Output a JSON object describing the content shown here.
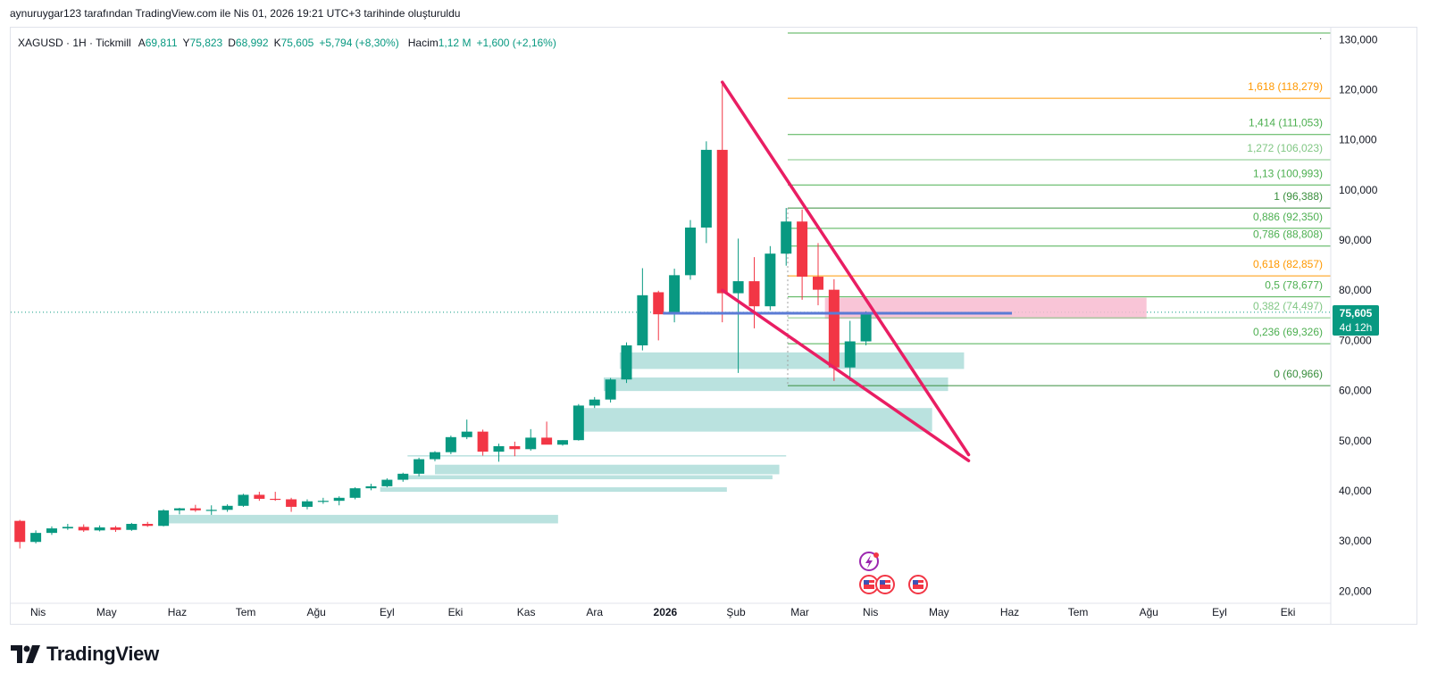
{
  "header": {
    "attribution": "aynuruygar123 tarafından TradingView.com ile Nis 01, 2026 19:21 UTC+3 tarihinde oluşturuldu"
  },
  "legend": {
    "symbol": "XAGUSD · 1H · Tickmill",
    "open_label": "A",
    "open": "69,811",
    "high_label": "Y",
    "high": "75,823",
    "low_label": "D",
    "low": "68,992",
    "close_label": "K",
    "close": "75,605",
    "change": "+5,794 (+8,30%)",
    "volume_label": "Hacim",
    "volume": "1,12 M",
    "volume_change": "+1,600 (+2,16%)"
  },
  "price_tag": {
    "price": "75,605",
    "countdown": "4d 12h"
  },
  "brand": {
    "name": "TradingView"
  },
  "colors": {
    "up": "#089981",
    "down": "#f23645",
    "wedge": "#e91e63",
    "fib_green": "#4caf50",
    "fib_orange": "#ff9800",
    "zone": "#b2dfdb",
    "resistance_zone": "#f8bbd0",
    "level_line": "#5b7bd5"
  },
  "chart_data": {
    "type": "candlestick",
    "symbol": "XAGUSD",
    "ylim": [
      18000,
      132000
    ],
    "y_ticks": [
      "130,000",
      "120,000",
      "110,000",
      "100,000",
      "90,000",
      "80,000",
      "70,000",
      "60,000",
      "50,000",
      "40,000",
      "30,000",
      "20,000"
    ],
    "y_tick_values": [
      130000,
      120000,
      110000,
      100000,
      90000,
      80000,
      70000,
      60000,
      50000,
      40000,
      30000,
      20000
    ],
    "x_ticks": [
      "Nis",
      "May",
      "Haz",
      "Tem",
      "Ağu",
      "Eyl",
      "Eki",
      "Kas",
      "Ara",
      "2026",
      "Şub",
      "Mar",
      "Nis",
      "May",
      "Haz",
      "Tem",
      "Ağu",
      "Eyl",
      "Eki"
    ],
    "x_tick_dates": [
      "2025-04-01",
      "2025-05-01",
      "2025-06-01",
      "2025-07-01",
      "2025-08-01",
      "2025-09-01",
      "2025-10-01",
      "2025-11-01",
      "2025-12-01",
      "2026-01-01",
      "2026-02-01",
      "2026-03-01",
      "2026-04-01",
      "2026-05-01",
      "2026-06-01",
      "2026-07-01",
      "2026-08-01",
      "2026-09-01",
      "2026-10-01"
    ],
    "candles": [
      {
        "t": "2025-03-24",
        "o": 34000,
        "h": 34200,
        "l": 28500,
        "c": 29800
      },
      {
        "t": "2025-03-31",
        "o": 29800,
        "h": 32100,
        "l": 29500,
        "c": 31600
      },
      {
        "t": "2025-04-07",
        "o": 31600,
        "h": 32900,
        "l": 31200,
        "c": 32500
      },
      {
        "t": "2025-04-14",
        "o": 32500,
        "h": 33400,
        "l": 32200,
        "c": 32800
      },
      {
        "t": "2025-04-21",
        "o": 32800,
        "h": 33300,
        "l": 31800,
        "c": 32100
      },
      {
        "t": "2025-04-28",
        "o": 32100,
        "h": 33100,
        "l": 31900,
        "c": 32700
      },
      {
        "t": "2025-05-05",
        "o": 32700,
        "h": 33000,
        "l": 31800,
        "c": 32200
      },
      {
        "t": "2025-05-12",
        "o": 32200,
        "h": 33600,
        "l": 32000,
        "c": 33400
      },
      {
        "t": "2025-05-19",
        "o": 33400,
        "h": 33800,
        "l": 32800,
        "c": 33000
      },
      {
        "t": "2025-05-26",
        "o": 33000,
        "h": 36300,
        "l": 32900,
        "c": 36100
      },
      {
        "t": "2025-06-02",
        "o": 36100,
        "h": 36600,
        "l": 35300,
        "c": 36500
      },
      {
        "t": "2025-06-09",
        "o": 36500,
        "h": 37200,
        "l": 35800,
        "c": 36100
      },
      {
        "t": "2025-06-16",
        "o": 36100,
        "h": 37100,
        "l": 35200,
        "c": 36200
      },
      {
        "t": "2025-06-23",
        "o": 36200,
        "h": 37300,
        "l": 35800,
        "c": 37000
      },
      {
        "t": "2025-06-30",
        "o": 37000,
        "h": 39400,
        "l": 36800,
        "c": 39200
      },
      {
        "t": "2025-07-07",
        "o": 39200,
        "h": 39800,
        "l": 38000,
        "c": 38400
      },
      {
        "t": "2025-07-14",
        "o": 38400,
        "h": 39800,
        "l": 38000,
        "c": 38300
      },
      {
        "t": "2025-07-21",
        "o": 38300,
        "h": 38600,
        "l": 35800,
        "c": 36800
      },
      {
        "t": "2025-07-28",
        "o": 36800,
        "h": 38300,
        "l": 36300,
        "c": 37900
      },
      {
        "t": "2025-08-04",
        "o": 37900,
        "h": 38600,
        "l": 37400,
        "c": 38000
      },
      {
        "t": "2025-08-11",
        "o": 38000,
        "h": 38900,
        "l": 37100,
        "c": 38600
      },
      {
        "t": "2025-08-18",
        "o": 38600,
        "h": 40700,
        "l": 38300,
        "c": 40500
      },
      {
        "t": "2025-08-25",
        "o": 40500,
        "h": 41400,
        "l": 40100,
        "c": 40900
      },
      {
        "t": "2025-09-01",
        "o": 40900,
        "h": 42500,
        "l": 40700,
        "c": 42200
      },
      {
        "t": "2025-09-08",
        "o": 42200,
        "h": 43600,
        "l": 41800,
        "c": 43400
      },
      {
        "t": "2025-09-15",
        "o": 43400,
        "h": 46600,
        "l": 42900,
        "c": 46300
      },
      {
        "t": "2025-09-22",
        "o": 46300,
        "h": 47900,
        "l": 45900,
        "c": 47700
      },
      {
        "t": "2025-09-29",
        "o": 47700,
        "h": 51000,
        "l": 47300,
        "c": 50700
      },
      {
        "t": "2025-10-06",
        "o": 50700,
        "h": 54200,
        "l": 50300,
        "c": 51800
      },
      {
        "t": "2025-10-13",
        "o": 51800,
        "h": 52200,
        "l": 47000,
        "c": 47800
      },
      {
        "t": "2025-10-20",
        "o": 47800,
        "h": 49400,
        "l": 45800,
        "c": 48900
      },
      {
        "t": "2025-10-27",
        "o": 48900,
        "h": 49800,
        "l": 46900,
        "c": 48300
      },
      {
        "t": "2025-11-03",
        "o": 48300,
        "h": 52300,
        "l": 48000,
        "c": 50600
      },
      {
        "t": "2025-11-10",
        "o": 50600,
        "h": 53800,
        "l": 49500,
        "c": 49200
      },
      {
        "t": "2025-11-17",
        "o": 49200,
        "h": 50100,
        "l": 49000,
        "c": 50100
      },
      {
        "t": "2025-11-24",
        "o": 50100,
        "h": 57300,
        "l": 50000,
        "c": 57000
      },
      {
        "t": "2025-12-01",
        "o": 57000,
        "h": 58700,
        "l": 56500,
        "c": 58200
      },
      {
        "t": "2025-12-08",
        "o": 58200,
        "h": 62500,
        "l": 57600,
        "c": 62200
      },
      {
        "t": "2025-12-15",
        "o": 62200,
        "h": 69600,
        "l": 61500,
        "c": 69000
      },
      {
        "t": "2025-12-22",
        "o": 69000,
        "h": 84400,
        "l": 68000,
        "c": 79000
      },
      {
        "t": "2025-12-29",
        "o": 79600,
        "h": 79900,
        "l": 70000,
        "c": 75200
      },
      {
        "t": "2026-01-05",
        "o": 75200,
        "h": 84300,
        "l": 73600,
        "c": 83000
      },
      {
        "t": "2026-01-12",
        "o": 83000,
        "h": 94000,
        "l": 82100,
        "c": 92500
      },
      {
        "t": "2026-01-19",
        "o": 92500,
        "h": 109700,
        "l": 89400,
        "c": 108000
      },
      {
        "t": "2026-01-26",
        "o": 108000,
        "h": 121600,
        "l": 73600,
        "c": 79400
      },
      {
        "t": "2026-02-02",
        "o": 79400,
        "h": 90300,
        "l": 63500,
        "c": 81800
      },
      {
        "t": "2026-02-09",
        "o": 81800,
        "h": 86600,
        "l": 72400,
        "c": 76800
      },
      {
        "t": "2026-02-16",
        "o": 76800,
        "h": 88800,
        "l": 76000,
        "c": 87300
      },
      {
        "t": "2026-02-23",
        "o": 87300,
        "h": 96400,
        "l": 84900,
        "c": 93700
      },
      {
        "t": "2026-03-02",
        "o": 93700,
        "h": 96100,
        "l": 78100,
        "c": 82700
      },
      {
        "t": "2026-03-09",
        "o": 82700,
        "h": 89400,
        "l": 77000,
        "c": 80100
      },
      {
        "t": "2026-03-16",
        "o": 80100,
        "h": 82200,
        "l": 61900,
        "c": 64600
      },
      {
        "t": "2026-03-23",
        "o": 64600,
        "h": 73900,
        "l": 61900,
        "c": 69800
      },
      {
        "t": "2026-03-30",
        "o": 69800,
        "h": 75800,
        "l": 69000,
        "c": 75600
      }
    ],
    "fibonacci": [
      {
        "label": "1,618 (118,279)",
        "value": 118279,
        "color": "orange"
      },
      {
        "label": "1,414 (111,053)",
        "value": 111053,
        "color": "green"
      },
      {
        "label": "1,272 (106,023)",
        "value": 106023,
        "color": "light-green"
      },
      {
        "label": "1,13 (100,993)",
        "value": 100993,
        "color": "green"
      },
      {
        "label": "1 (96,388)",
        "value": 96388,
        "color": "dark-green"
      },
      {
        "label": "0,886 (92,350)",
        "value": 92350,
        "color": "green"
      },
      {
        "label": "0,786 (88,808)",
        "value": 88808,
        "color": "green"
      },
      {
        "label": "0,618 (82,857)",
        "value": 82857,
        "color": "orange"
      },
      {
        "label": "0,5 (78,677)",
        "value": 78677,
        "color": "green"
      },
      {
        "label": "0,382 (74,497)",
        "value": 74497,
        "color": "light-green"
      },
      {
        "label": "0,236 (69,326)",
        "value": 69326,
        "color": "green"
      },
      {
        "label": "0 (60,966)",
        "value": 60966,
        "color": "dark-green"
      }
    ],
    "current_price": 75605,
    "wedge": {
      "upper": [
        [
          "2026-01-26",
          121500
        ],
        [
          "2026-05-14",
          47200
        ]
      ],
      "lower": [
        [
          "2026-01-26",
          80000
        ],
        [
          "2026-05-14",
          46000
        ]
      ]
    },
    "support_zones": [
      {
        "from": "2025-05-26",
        "to": "2025-11-15",
        "low": 33500,
        "high": 35200
      },
      {
        "from": "2025-12-12",
        "to": "2026-05-12",
        "low": 64300,
        "high": 67600
      },
      {
        "from": "2025-12-05",
        "to": "2026-05-05",
        "low": 59900,
        "high": 62600
      },
      {
        "from": "2025-11-25",
        "to": "2026-04-28",
        "low": 51800,
        "high": 56500
      },
      {
        "from": "2025-09-22",
        "to": "2026-02-20",
        "low": 43300,
        "high": 45200
      },
      {
        "from": "2025-09-08",
        "to": "2026-02-17",
        "low": 42300,
        "high": 43100
      },
      {
        "from": "2025-08-29",
        "to": "2026-01-28",
        "low": 39800,
        "high": 40700
      },
      {
        "from": "2025-09-10",
        "to": "2026-02-23",
        "low": 46900,
        "high": 47100
      }
    ],
    "resistance_zone": {
      "from": "2026-03-12",
      "to": "2026-07-31",
      "low": 74300,
      "high": 78500
    },
    "level_line": {
      "from": "2025-12-31",
      "to": "2026-06-02",
      "value": 75400
    }
  }
}
